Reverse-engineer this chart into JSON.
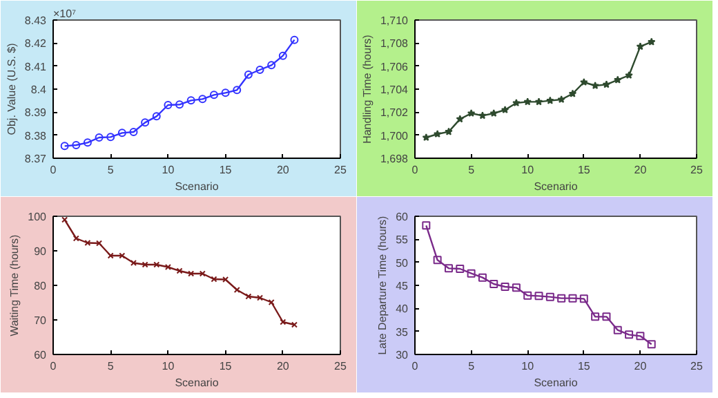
{
  "chart_data": [
    {
      "type": "line",
      "xlabel": "Scenario",
      "ylabel": "Obj. Value (U.S. $)",
      "annotations": [
        "×10⁷"
      ],
      "marker": "circle",
      "grid": false,
      "x": [
        1,
        2,
        3,
        4,
        5,
        6,
        7,
        8,
        9,
        10,
        11,
        12,
        13,
        14,
        15,
        16,
        17,
        18,
        19,
        20,
        21
      ],
      "series": [
        {
          "color": "#3333ff",
          "values": [
            8.3753,
            8.3757,
            8.3768,
            8.379,
            8.3792,
            8.381,
            8.3814,
            8.3855,
            8.3882,
            8.3931,
            8.3933,
            8.3951,
            8.3957,
            8.3975,
            8.3984,
            8.3996,
            8.4063,
            8.4084,
            8.4104,
            8.4145,
            8.4214
          ]
        }
      ],
      "xlim": [
        0,
        25
      ],
      "xticks": [
        0,
        5,
        10,
        15,
        20,
        25
      ],
      "ylim": [
        8.37,
        8.43
      ],
      "yticks": [
        8.37,
        8.38,
        8.39,
        {
          "value": 8.4,
          "label": "8.4"
        },
        8.41,
        8.42,
        8.43
      ]
    },
    {
      "type": "line",
      "xlabel": "Scenario",
      "ylabel": "Handling Time (hours)",
      "marker": "star",
      "grid": false,
      "x": [
        1,
        2,
        3,
        4,
        5,
        6,
        7,
        8,
        9,
        10,
        11,
        12,
        13,
        14,
        15,
        16,
        17,
        18,
        19,
        20,
        21
      ],
      "series": [
        {
          "color": "#2e4a2e",
          "values": [
            1699.8,
            1700.1,
            1700.3,
            1701.4,
            1701.9,
            1701.7,
            1701.9,
            1702.2,
            1702.8,
            1702.9,
            1702.9,
            1703.0,
            1703.1,
            1703.6,
            1704.6,
            1704.3,
            1704.4,
            1704.8,
            1705.2,
            1707.7,
            1708.1
          ]
        }
      ],
      "xlim": [
        0,
        25
      ],
      "xticks": [
        0,
        5,
        10,
        15,
        20,
        25
      ],
      "ylim": [
        1698,
        1710
      ],
      "yticks": [
        {
          "value": 1698,
          "label": "1,698"
        },
        {
          "value": 1700,
          "label": "1,700"
        },
        {
          "value": 1702,
          "label": "1,702"
        },
        {
          "value": 1704,
          "label": "1,704"
        },
        {
          "value": 1706,
          "label": "1,706"
        },
        {
          "value": 1708,
          "label": "1,708"
        },
        {
          "value": 1710,
          "label": "1,710"
        }
      ]
    },
    {
      "type": "line",
      "xlabel": "Scenario",
      "ylabel": "Waiting Time (hours)",
      "marker": "cross",
      "grid": false,
      "x": [
        1,
        2,
        3,
        4,
        5,
        6,
        7,
        8,
        9,
        10,
        11,
        12,
        13,
        14,
        15,
        16,
        17,
        18,
        19,
        20,
        21
      ],
      "series": [
        {
          "color": "#7a1a1a",
          "values": [
            99,
            93.6,
            92.3,
            92.2,
            88.6,
            88.6,
            86.5,
            86,
            86,
            85.3,
            84.2,
            83.4,
            83.4,
            81.8,
            81.7,
            78.7,
            76.8,
            76.4,
            75.1,
            69.4,
            68.6
          ]
        }
      ],
      "xlim": [
        0,
        25
      ],
      "xticks": [
        0,
        5,
        10,
        15,
        20,
        25
      ],
      "ylim": [
        60,
        100
      ],
      "yticks": [
        60,
        70,
        80,
        90,
        100
      ]
    },
    {
      "type": "line",
      "xlabel": "Scenario",
      "ylabel": "Late Departure Time (hours)",
      "marker": "square",
      "grid": false,
      "x": [
        1,
        2,
        3,
        4,
        5,
        6,
        7,
        8,
        9,
        10,
        11,
        12,
        13,
        14,
        15,
        16,
        17,
        18,
        19,
        20,
        21
      ],
      "series": [
        {
          "color": "#7a2a8a",
          "values": [
            58,
            50.5,
            48.7,
            48.6,
            47.6,
            46.7,
            45.3,
            44.7,
            44.5,
            42.8,
            42.7,
            42.5,
            42.2,
            42.2,
            42.1,
            38.2,
            38.2,
            35.3,
            34.3,
            34,
            32.2
          ]
        }
      ],
      "xlim": [
        0,
        25
      ],
      "xticks": [
        0,
        5,
        10,
        15,
        20,
        25
      ],
      "ylim": [
        30,
        60
      ],
      "yticks": [
        30,
        35,
        40,
        45,
        50,
        55,
        60
      ]
    }
  ]
}
